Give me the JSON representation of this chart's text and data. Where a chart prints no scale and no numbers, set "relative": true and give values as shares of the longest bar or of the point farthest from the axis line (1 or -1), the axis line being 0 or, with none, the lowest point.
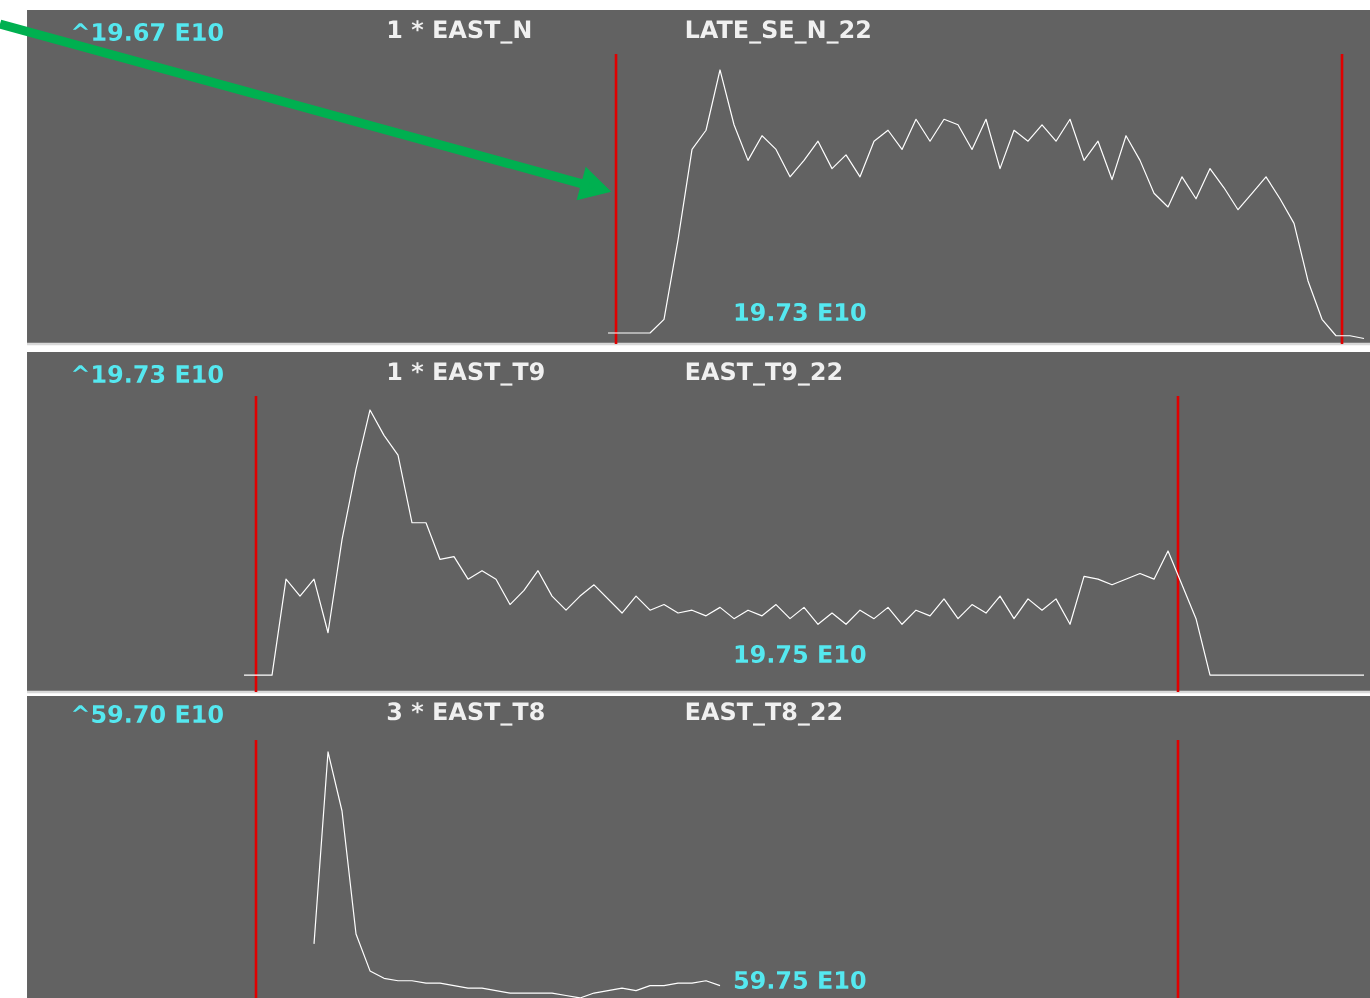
{
  "chart_data": [
    {
      "type": "line",
      "title": "1 * EAST_N",
      "subtitle": "LATE_SE_N_22",
      "annotations": [
        "^19.67 E10",
        "19.73 E10"
      ],
      "relative": true,
      "categories": [
        null,
        null,
        null,
        null,
        null,
        null,
        null,
        null,
        null,
        null,
        null,
        null,
        null,
        null,
        null,
        null,
        null,
        null,
        null,
        null,
        null,
        null,
        null,
        null,
        null,
        null,
        null,
        null,
        null,
        null,
        null,
        null,
        null,
        null,
        null,
        null,
        null,
        null,
        null,
        null,
        null,
        null,
        null,
        null,
        null,
        null,
        null,
        null,
        null,
        null,
        null,
        null,
        null,
        null,
        null,
        null,
        null,
        null,
        null,
        null,
        null,
        null,
        null,
        null,
        null,
        null,
        null,
        null,
        null,
        null,
        null,
        null,
        null,
        null,
        null,
        null,
        null,
        null,
        null,
        null,
        null,
        null,
        null,
        null,
        null,
        null,
        null,
        null,
        null,
        null,
        null,
        null,
        null,
        null,
        null,
        null
      ],
      "series": [
        {
          "color": "#ffffff",
          "values": [
            null,
            null,
            null,
            null,
            null,
            null,
            null,
            null,
            null,
            null,
            null,
            null,
            null,
            null,
            null,
            null,
            null,
            null,
            null,
            null,
            null,
            null,
            null,
            null,
            null,
            null,
            null,
            null,
            null,
            null,
            null,
            null,
            null,
            null,
            null,
            null,
            null,
            null,
            null,
            null,
            null,
            0.04,
            0.04,
            0.04,
            0.04,
            0.09,
            0.38,
            0.71,
            0.78,
            1.0,
            0.8,
            0.67,
            0.76,
            0.71,
            0.61,
            0.67,
            0.74,
            0.64,
            0.69,
            0.61,
            0.74,
            0.78,
            0.71,
            0.82,
            0.74,
            0.82,
            0.8,
            0.71,
            0.82,
            0.64,
            0.78,
            0.74,
            0.8,
            0.74,
            0.82,
            0.67,
            0.74,
            0.6,
            0.76,
            0.67,
            0.55,
            0.5,
            0.61,
            0.53,
            0.64,
            0.57,
            0.49,
            0.55,
            0.61,
            0.53,
            0.44,
            0.23,
            0.09,
            0.03,
            0.03,
            0.02
          ]
        }
      ]
    },
    {
      "type": "line",
      "title": "1 * EAST_T9",
      "subtitle": "EAST_T9_22",
      "annotations": [
        "^19.73 E10",
        "19.75 E10"
      ],
      "relative": true,
      "categories": [
        null,
        null,
        null,
        null,
        null,
        null,
        null,
        null,
        null,
        null,
        null,
        null,
        null,
        null,
        null,
        null,
        null,
        null,
        null,
        null,
        null,
        null,
        null,
        null,
        null,
        null,
        null,
        null,
        null,
        null,
        null,
        null,
        null,
        null,
        null,
        null,
        null,
        null,
        null,
        null,
        null,
        null,
        null,
        null,
        null,
        null,
        null,
        null,
        null,
        null,
        null,
        null,
        null,
        null,
        null,
        null,
        null,
        null,
        null,
        null,
        null,
        null,
        null,
        null,
        null,
        null,
        null,
        null,
        null,
        null,
        null,
        null,
        null,
        null,
        null,
        null,
        null,
        null,
        null,
        null,
        null,
        null,
        null,
        null,
        null,
        null,
        null,
        null,
        null,
        null,
        null,
        null,
        null,
        null,
        null,
        null
      ],
      "series": [
        {
          "color": "#ffffff",
          "values": [
            null,
            null,
            null,
            null,
            null,
            null,
            null,
            null,
            null,
            null,
            null,
            null,
            null,
            null,
            null,
            0.06,
            0.06,
            0.06,
            0.4,
            0.34,
            0.4,
            0.21,
            0.54,
            0.79,
            1.0,
            0.91,
            0.84,
            0.6,
            0.6,
            0.47,
            0.48,
            0.4,
            0.43,
            0.4,
            0.31,
            0.36,
            0.43,
            0.34,
            0.29,
            0.34,
            0.38,
            0.33,
            0.28,
            0.34,
            0.29,
            0.31,
            0.28,
            0.29,
            0.27,
            0.3,
            0.26,
            0.29,
            0.27,
            0.31,
            0.26,
            0.3,
            0.24,
            0.28,
            0.24,
            0.29,
            0.26,
            0.3,
            0.24,
            0.29,
            0.27,
            0.33,
            0.26,
            0.31,
            0.28,
            0.34,
            0.26,
            0.33,
            0.29,
            0.33,
            0.24,
            0.41,
            0.4,
            0.38,
            0.4,
            0.42,
            0.4,
            0.5,
            0.38,
            0.26,
            0.06,
            0.06,
            0.06,
            0.06,
            0.06,
            0.06,
            0.06,
            0.06,
            0.06,
            0.06,
            0.06,
            0.06
          ]
        }
      ]
    },
    {
      "type": "line",
      "title": "3 * EAST_T8",
      "subtitle": "EAST_T8_22",
      "annotations": [
        "^59.70 E10",
        "59.75 E10"
      ],
      "relative": true,
      "categories": [
        null,
        null,
        null,
        null,
        null,
        null,
        null,
        null,
        null,
        null,
        null,
        null,
        null,
        null,
        null,
        null,
        null,
        null,
        null,
        null,
        null,
        null,
        null,
        null,
        null,
        null,
        null,
        null,
        null,
        null,
        null,
        null,
        null,
        null,
        null,
        null,
        null,
        null,
        null,
        null,
        null,
        null,
        null,
        null,
        null,
        null,
        null,
        null,
        null,
        null,
        null,
        null,
        null,
        null,
        null,
        null,
        null,
        null,
        null,
        null,
        null,
        null,
        null,
        null,
        null,
        null,
        null,
        null,
        null,
        null,
        null,
        null,
        null,
        null,
        null,
        null,
        null,
        null,
        null,
        null,
        null,
        null,
        null,
        null,
        null,
        null,
        null,
        null,
        null,
        null,
        null,
        null,
        null,
        null,
        null,
        null
      ],
      "series": [
        {
          "color": "#ffffff",
          "values": [
            null,
            null,
            null,
            null,
            null,
            null,
            null,
            null,
            null,
            null,
            null,
            null,
            null,
            null,
            null,
            null,
            null,
            null,
            null,
            null,
            0.22,
            1.0,
            0.76,
            0.26,
            0.11,
            0.08,
            0.07,
            0.07,
            0.06,
            0.06,
            0.05,
            0.04,
            0.04,
            0.03,
            0.02,
            0.02,
            0.02,
            0.02,
            0.01,
            0,
            0.02,
            0.03,
            0.04,
            0.03,
            0.05,
            0.05,
            0.06,
            0.06,
            0.07,
            0.05,
            null,
            null,
            null,
            null,
            null,
            null,
            null,
            null,
            null,
            null,
            null,
            null,
            null,
            null,
            null,
            null,
            null,
            null,
            null,
            null,
            null,
            null,
            null,
            null,
            null,
            null,
            null,
            null,
            null,
            null,
            null,
            null,
            null,
            null,
            null,
            null,
            null,
            null,
            null,
            null,
            null,
            null,
            null,
            null,
            null,
            null
          ]
        }
      ]
    }
  ]
}
